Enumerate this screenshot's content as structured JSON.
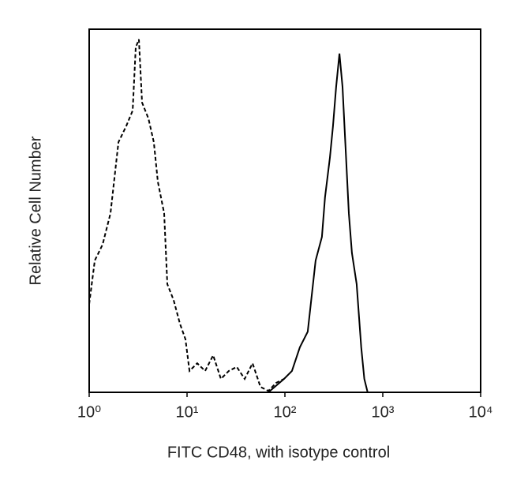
{
  "chart_data": {
    "type": "line",
    "x_label": "FITC CD48, with isotype control",
    "y_label": "Relative Cell Number",
    "x_scale": "log",
    "xlim": [
      1,
      10000
    ],
    "xticks": [
      {
        "value": 1,
        "label": "10⁰"
      },
      {
        "value": 10,
        "label": "10¹"
      },
      {
        "value": 100,
        "label": "10²"
      },
      {
        "value": 1000,
        "label": "10³"
      },
      {
        "value": 10000,
        "label": "10⁴"
      }
    ],
    "ylim": [
      0,
      100
    ],
    "series": [
      {
        "color": "#000000",
        "line_style": "dashed",
        "x": [
          1,
          1.14,
          1.37,
          1.65,
          1.99,
          2.39,
          2.78,
          2.99,
          3.22,
          3.47,
          4.03,
          4.58,
          5.03,
          5.84,
          6.29,
          7.29,
          8.46,
          9.63,
          10.6,
          12.7,
          15.3,
          18.5,
          22.2,
          26.7,
          32.2,
          38.8,
          46.7,
          56.2,
          67.7,
          81.5,
          98
        ],
        "values": [
          24.3,
          36.3,
          40.7,
          49.3,
          68.9,
          73.3,
          77.6,
          95,
          97.2,
          79.8,
          75.4,
          68.9,
          58,
          49.3,
          29.8,
          25.4,
          18.9,
          14.6,
          5.9,
          8,
          5.9,
          10.2,
          3.7,
          5.9,
          7,
          3.7,
          8,
          1.5,
          0.4,
          2.6,
          3.7
        ]
      },
      {
        "color": "#000000",
        "line_style": "solid",
        "x": [
          67.7,
          98,
          118,
          142,
          171,
          206,
          239,
          257,
          288,
          310,
          334,
          361,
          388,
          418,
          450,
          484,
          541,
          602,
          648,
          700
        ],
        "values": [
          0,
          3.7,
          5.9,
          12.4,
          16.7,
          36.3,
          42.8,
          53.7,
          64.6,
          73.3,
          84.1,
          93.3,
          84.1,
          66.7,
          49.3,
          38.4,
          29.8,
          12.4,
          3.7,
          0
        ]
      }
    ]
  }
}
